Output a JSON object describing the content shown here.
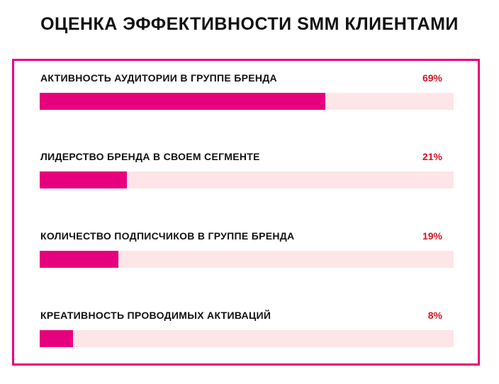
{
  "colors": {
    "accent": "#e7007d",
    "track": "#fde5e8",
    "value_text": "#d9141e",
    "label_text": "#111111"
  },
  "chart_data": {
    "type": "bar",
    "orientation": "horizontal",
    "title": "ОЦЕНКА ЭФФЕКТИВНОСТИ SMM КЛИЕНТАМИ",
    "categories": [
      "АКТИВНОСТЬ АУДИТОРИИ В ГРУППЕ БРЕНДА",
      "ЛИДЕРСТВО БРЕНДА В СВОЕМ СЕГМЕНТЕ",
      "КОЛИЧЕСТВО ПОДПИСЧИКОВ В ГРУППЕ БРЕНДА",
      "КРЕАТИВНОСТЬ ПРОВОДИМЫХ АКТИВАЦИЙ"
    ],
    "values": [
      69,
      21,
      19,
      8
    ],
    "value_labels": [
      "69%",
      "21%",
      "19%",
      "8%"
    ],
    "xlim": [
      0,
      100
    ],
    "grid": false
  }
}
